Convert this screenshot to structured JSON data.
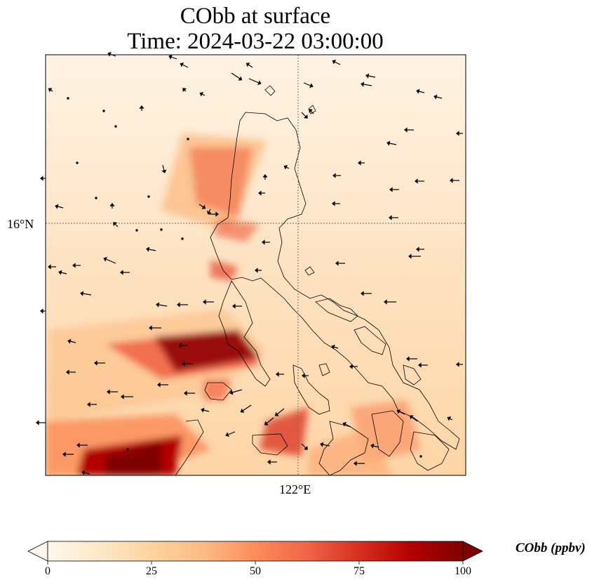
{
  "map": {
    "title_line1": "CObb at surface",
    "title_line2": "Time: 2024-03-22 03:00:00",
    "lat_gridline_label": "16°N",
    "lon_gridline_label": "122°E",
    "variable": "CObb",
    "colormap": "OrRd",
    "colors": {
      "low": "#fff7ec",
      "mid_low": "#fdd49e",
      "mid": "#fc8d59",
      "high": "#d7301f",
      "max": "#7f0000",
      "coastline": "#000000",
      "gridline": "#6b6b6b"
    }
  },
  "colorbar": {
    "label": "CObb (ppbv)",
    "ticks": [
      "0",
      "25",
      "50",
      "75",
      "100"
    ],
    "tick_values": [
      0,
      25,
      50,
      75,
      100
    ],
    "min": 0,
    "max": 100,
    "extend": "both"
  }
}
